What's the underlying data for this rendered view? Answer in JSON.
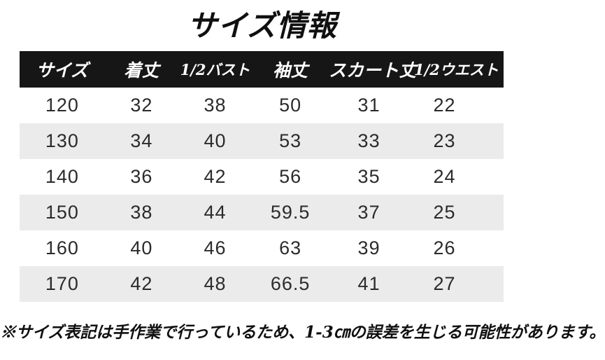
{
  "title": "サイズ情報",
  "table": {
    "headers": [
      "サイズ",
      "着丈",
      "1/2バスト",
      "袖丈",
      "スカート丈",
      "1/2ウエスト"
    ],
    "rows": [
      [
        "120",
        "32",
        "38",
        "50",
        "31",
        "22"
      ],
      [
        "130",
        "34",
        "40",
        "53",
        "33",
        "23"
      ],
      [
        "140",
        "36",
        "42",
        "56",
        "35",
        "24"
      ],
      [
        "150",
        "38",
        "44",
        "59.5",
        "37",
        "25"
      ],
      [
        "160",
        "40",
        "46",
        "63",
        "39",
        "26"
      ],
      [
        "170",
        "42",
        "48",
        "66.5",
        "41",
        "27"
      ]
    ]
  },
  "note": "※サイズ表記は手作業で行っているため、1-3㎝の誤差を生じる可能性があります。",
  "colors": {
    "background": "#ffffff",
    "header_bg": "#161616",
    "header_text": "#ffffff",
    "row_alt_bg": "#ebebeb",
    "body_text": "#2b2b2b",
    "title_text": "#101010"
  }
}
